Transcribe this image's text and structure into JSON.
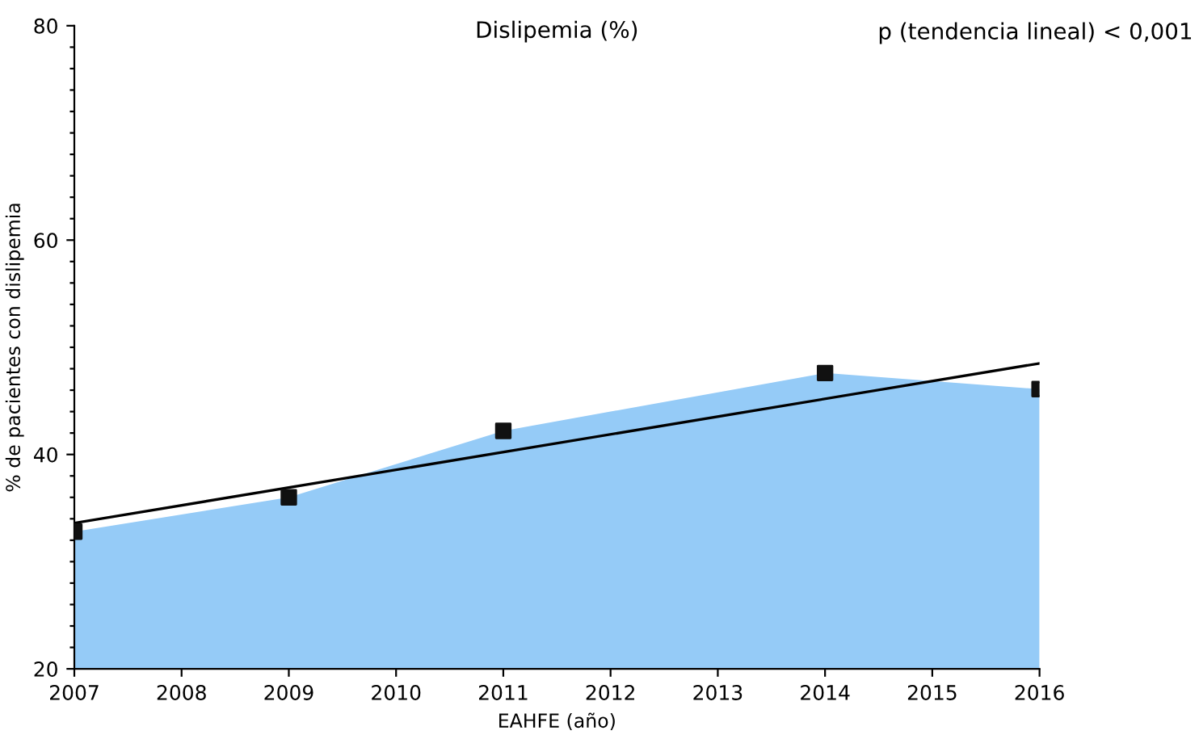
{
  "chart_data": {
    "type": "area",
    "title": "Dislipemia (%)",
    "xlabel": "EAHFE (año)",
    "ylabel": "% de pacientes con dislipemia",
    "annotations": [
      "p (tendencia lineal) < 0,001"
    ],
    "x": [
      2007,
      2009,
      2011,
      2014,
      2016
    ],
    "series": [
      {
        "color": "#95cbf7",
        "values": [
          32.8,
          36.0,
          42.2,
          47.6,
          46.1
        ]
      },
      {
        "type": "scatter",
        "color": "#111111",
        "marker": "square",
        "values": [
          32.8,
          36.0,
          42.2,
          47.6,
          46.1
        ]
      },
      {
        "type": "line",
        "color": "#000000",
        "x": [
          2007,
          2016
        ],
        "values": [
          33.6,
          48.5
        ]
      }
    ],
    "xlim": [
      2007,
      2016
    ],
    "xticks": [
      2007,
      2008,
      2009,
      2010,
      2011,
      2012,
      2013,
      2014,
      2015,
      2016
    ],
    "ylim": [
      20,
      80
    ],
    "yticks": [
      20,
      {
        "value": 22,
        "label": null
      },
      {
        "value": 24,
        "label": null
      },
      {
        "value": 26,
        "label": null
      },
      {
        "value": 28,
        "label": null
      },
      {
        "value": 30,
        "label": null
      },
      {
        "value": 32,
        "label": null
      },
      {
        "value": 34,
        "label": null
      },
      {
        "value": 36,
        "label": null
      },
      {
        "value": 38,
        "label": null
      },
      40,
      {
        "value": 42,
        "label": null
      },
      {
        "value": 44,
        "label": null
      },
      {
        "value": 46,
        "label": null
      },
      {
        "value": 48,
        "label": null
      },
      {
        "value": 50,
        "label": null
      },
      {
        "value": 52,
        "label": null
      },
      {
        "value": 54,
        "label": null
      },
      {
        "value": 56,
        "label": null
      },
      {
        "value": 58,
        "label": null
      },
      60,
      {
        "value": 62,
        "label": null
      },
      {
        "value": 64,
        "label": null
      },
      {
        "value": 66,
        "label": null
      },
      {
        "value": 68,
        "label": null
      },
      {
        "value": 70,
        "label": null
      },
      {
        "value": 72,
        "label": null
      },
      {
        "value": 74,
        "label": null
      },
      {
        "value": 76,
        "label": null
      },
      {
        "value": 78,
        "label": null
      },
      80
    ],
    "grid": false,
    "legend": false
  }
}
